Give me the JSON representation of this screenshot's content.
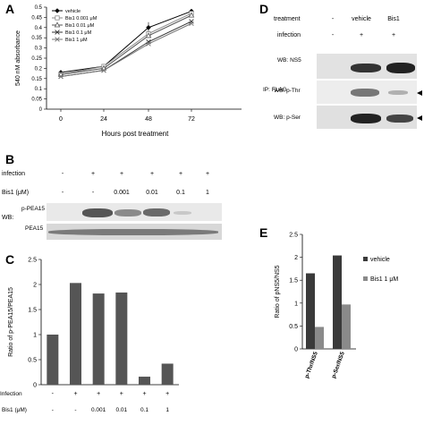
{
  "panels": {
    "A": "A",
    "B": "B",
    "C": "C",
    "D": "D",
    "E": "E"
  },
  "panelA": {
    "chart_data": {
      "type": "line",
      "title": "",
      "xlabel": "Hours post treatment",
      "ylabel": "540 nM absorbance",
      "x": [
        0,
        24,
        48,
        72
      ],
      "xticks": [
        "0",
        "24",
        "48",
        "72"
      ],
      "yticks": [
        "0",
        "0.05",
        "0.1",
        "0.15",
        "0.2",
        "0.25",
        "0.3",
        "0.35",
        "0.4",
        "0.45",
        "0.5"
      ],
      "ylim": [
        0,
        0.5
      ],
      "legend_position": "top-left",
      "series": [
        {
          "name": "vehicle",
          "values": [
            0.18,
            0.21,
            0.4,
            0.48
          ],
          "color": "#000000",
          "marker": "diamond"
        },
        {
          "name": "Bis1 0.001 μM",
          "values": [
            0.17,
            0.21,
            0.37,
            0.47
          ],
          "color": "#888888",
          "marker": "square"
        },
        {
          "name": "Bis1 0.01 μM",
          "values": [
            0.17,
            0.2,
            0.36,
            0.46
          ],
          "color": "#555555",
          "marker": "triangle"
        },
        {
          "name": "Bis1 0.1 μM",
          "values": [
            0.16,
            0.19,
            0.33,
            0.43
          ],
          "color": "#333333",
          "marker": "x"
        },
        {
          "name": "Bis1 1 μM",
          "values": [
            0.16,
            0.19,
            0.32,
            0.42
          ],
          "color": "#777777",
          "marker": "x"
        }
      ]
    }
  },
  "panelB": {
    "row1_label": "infection",
    "row2_label": "Bis1 (μM)",
    "infection": [
      "-",
      "+",
      "+",
      "+",
      "+",
      "+"
    ],
    "bis1": [
      "-",
      "-",
      "0.001",
      "0.01",
      "0.1",
      "1"
    ],
    "wb_prefix": "WB:",
    "blot1_label": "p-PEA15",
    "blot2_label": "PEA15"
  },
  "panelC": {
    "chart_data": {
      "type": "bar",
      "ylabel": "Ratio of p-PEA15/PEA15",
      "yticks": [
        "0",
        "0.5",
        "1",
        "1.5",
        "2",
        "2.5"
      ],
      "ylim": [
        0,
        2.5
      ],
      "values": [
        1.0,
        2.03,
        1.82,
        1.84,
        0.16,
        0.42
      ],
      "color": "#555555",
      "row1_label": "Infection",
      "row2_label": "Bis1 (μM)",
      "infection": [
        "-",
        "+",
        "+",
        "+",
        "+",
        "+"
      ],
      "bis1": [
        "-",
        "-",
        "0.001",
        "0.01",
        "0.1",
        "1"
      ]
    }
  },
  "panelD": {
    "treatment_label": "treatment",
    "infection_label": "infection",
    "treatments": [
      "-",
      "vehicle",
      "Bis1"
    ],
    "infection": [
      "-",
      "+",
      "+"
    ],
    "blot1_label": "WB: NS5",
    "ip_label": "IP: FLAG",
    "blot2_label": "WB: p-Thr",
    "blot3_label": "WB: p-Ser"
  },
  "panelE": {
    "chart_data": {
      "type": "bar",
      "ylabel": "Ratio of pNS5/NS5",
      "categories": [
        "p-Thr/NS5",
        "p-Ser/NS5"
      ],
      "yticks": [
        "0",
        "0.5",
        "1",
        "1.5",
        "2",
        "2.5"
      ],
      "ylim": [
        0,
        2.5
      ],
      "legend_position": "right",
      "series": [
        {
          "name": "vehicle",
          "values": [
            1.65,
            2.04
          ],
          "color": "#3a3a3a"
        },
        {
          "name": "Bis1 1 μM",
          "values": [
            0.48,
            0.97
          ],
          "color": "#8a8a8a"
        }
      ]
    }
  }
}
